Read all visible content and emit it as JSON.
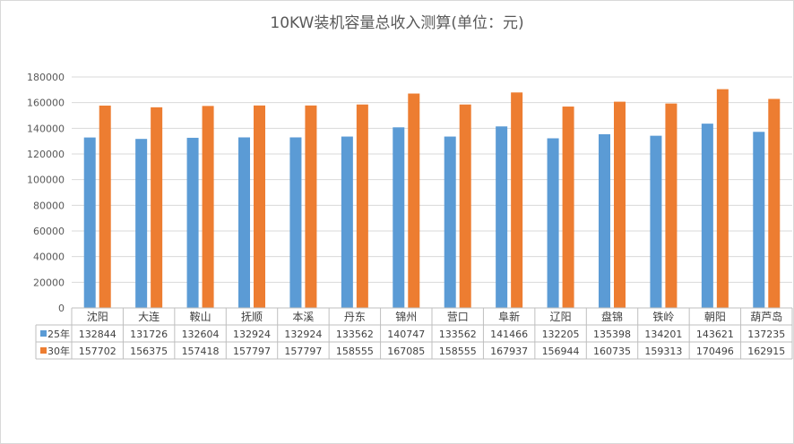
{
  "chart_data": {
    "type": "bar",
    "title": "10KW装机容量总收入测算(单位：元)",
    "categories": [
      "沈阳",
      "大连",
      "鞍山",
      "抚顺",
      "本溪",
      "丹东",
      "锦州",
      "营口",
      "阜新",
      "辽阳",
      "盘锦",
      "铁岭",
      "朝阳",
      "葫芦岛"
    ],
    "series": [
      {
        "name": "25年",
        "color": "#5b9bd5",
        "values": [
          132844,
          131726,
          132604,
          132924,
          132924,
          133562,
          140747,
          133562,
          141466,
          132205,
          135398,
          134201,
          143621,
          137235
        ]
      },
      {
        "name": "30年",
        "color": "#ed7d31",
        "values": [
          157702,
          156375,
          157418,
          157797,
          157797,
          158555,
          167085,
          158555,
          167937,
          156944,
          160735,
          159313,
          170496,
          162915
        ]
      }
    ],
    "ylim": [
      0,
      180000
    ],
    "yticks": [
      0,
      20000,
      40000,
      60000,
      80000,
      100000,
      120000,
      140000,
      160000,
      180000
    ],
    "grid": true,
    "legend": "data-table"
  }
}
